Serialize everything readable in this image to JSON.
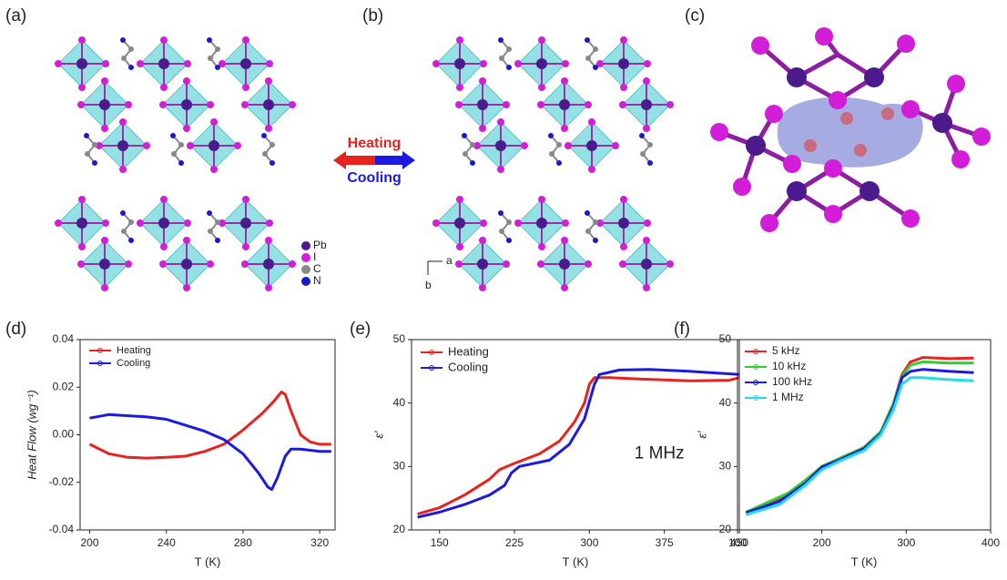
{
  "figure": {
    "panel_labels": [
      "(a)",
      "(b)",
      "(c)",
      "(d)",
      "(e)",
      "(f)"
    ],
    "transition": {
      "heating": "Heating",
      "cooling": "Cooling"
    },
    "atom_legend": [
      "Pb",
      "I",
      "C",
      "N"
    ],
    "axes": [
      "a",
      "b"
    ]
  },
  "chart_data": [
    {
      "type": "line",
      "x_label": "T (K)",
      "y_label": "Heat Flow (wg⁻¹)",
      "xlim": [
        195,
        328
      ],
      "xticks": [
        200,
        240,
        280,
        320
      ],
      "ylim": [
        -0.04,
        0.04
      ],
      "yticks": [
        -0.04,
        -0.02,
        {
          "value": 0,
          "label": "0.00"
        },
        0.02,
        0.04
      ],
      "legend": "top-left",
      "series": [
        {
          "name": "Heating",
          "color": "#e8231f",
          "x": [
            200,
            210,
            220,
            230,
            240,
            250,
            260,
            270,
            280,
            290,
            296,
            300,
            302,
            305,
            310,
            315,
            320,
            326
          ],
          "values": [
            -0.004,
            -0.008,
            -0.0095,
            -0.0098,
            -0.0095,
            -0.009,
            -0.007,
            -0.004,
            0.002,
            0.009,
            0.014,
            0.018,
            0.017,
            0.01,
            0.0,
            -0.003,
            -0.004,
            -0.004
          ]
        },
        {
          "name": "Cooling",
          "color": "#1a1ae0",
          "x": [
            200,
            210,
            220,
            230,
            240,
            250,
            260,
            270,
            280,
            288,
            293,
            295,
            298,
            302,
            305,
            310,
            320,
            326
          ],
          "values": [
            0.007,
            0.0085,
            0.008,
            0.0075,
            0.0065,
            0.004,
            0.0015,
            -0.002,
            -0.008,
            -0.016,
            -0.022,
            -0.023,
            -0.018,
            -0.009,
            -0.006,
            -0.006,
            -0.007,
            -0.007
          ]
        }
      ]
    },
    {
      "type": "line",
      "x_label": "T (K)",
      "y_label": "ε′",
      "annotation": "1 MHz",
      "xlim": [
        122,
        450
      ],
      "xticks": [
        150,
        225,
        300,
        375,
        450
      ],
      "ylim": [
        20,
        50
      ],
      "yticks": [
        20,
        30,
        40,
        50
      ],
      "legend": "top-left",
      "series": [
        {
          "name": "Heating",
          "color": "#e8231f",
          "x": [
            128,
            150,
            175,
            200,
            210,
            225,
            250,
            270,
            285,
            295,
            300,
            305,
            320,
            350,
            400,
            440,
            450
          ],
          "values": [
            22.5,
            23.5,
            25.5,
            28,
            29.5,
            30.5,
            32,
            34,
            37,
            40,
            43,
            44,
            44,
            43.8,
            43.5,
            43.6,
            44
          ]
        },
        {
          "name": "Cooling",
          "color": "#1a1ae0",
          "x": [
            128,
            150,
            175,
            200,
            215,
            222,
            230,
            260,
            280,
            295,
            305,
            310,
            330,
            360,
            400,
            450
          ],
          "values": [
            22,
            22.8,
            24,
            25.5,
            27,
            29,
            30,
            31,
            33.5,
            37.5,
            43,
            44.5,
            45.2,
            45.3,
            45,
            44.5
          ]
        }
      ]
    },
    {
      "type": "line",
      "x_label": "T (K)",
      "y_label": "ε′",
      "xlim": [
        100,
        400
      ],
      "xticks": [
        100,
        200,
        300,
        400
      ],
      "ylim": [
        20,
        50
      ],
      "yticks": [
        20,
        30,
        40,
        50
      ],
      "legend": "top-left",
      "series": [
        {
          "name": "5 kHz",
          "color": "#e8231f",
          "x": [
            110,
            150,
            180,
            200,
            220,
            250,
            270,
            285,
            295,
            305,
            320,
            350,
            380
          ],
          "values": [
            22.8,
            24.8,
            27.5,
            30,
            31.2,
            33,
            35.5,
            40,
            44.5,
            46.5,
            47.2,
            47,
            47.1
          ]
        },
        {
          "name": "10 kHz",
          "color": "#33cc33",
          "x": [
            110,
            160,
            180,
            200,
            220,
            250,
            270,
            285,
            295,
            305,
            320,
            350,
            380
          ],
          "values": [
            22.8,
            25.8,
            27.8,
            30,
            31.2,
            33,
            35.5,
            40,
            44.2,
            46,
            46.5,
            46.3,
            46.3
          ]
        },
        {
          "name": "100 kHz",
          "color": "#1a1ae0",
          "x": [
            110,
            150,
            180,
            200,
            220,
            250,
            270,
            285,
            295,
            305,
            320,
            350,
            380
          ],
          "values": [
            22.7,
            24.5,
            27.3,
            29.9,
            31,
            32.8,
            35.2,
            39.5,
            44,
            45,
            45.3,
            45,
            44.8
          ]
        },
        {
          "name": "1 MHz",
          "color": "#22dde8",
          "x": [
            110,
            150,
            180,
            200,
            220,
            250,
            270,
            285,
            295,
            305,
            320,
            350,
            380
          ],
          "values": [
            22.4,
            24,
            27,
            29.5,
            30.8,
            32.5,
            35,
            39,
            43,
            44,
            44,
            43.7,
            43.5
          ]
        }
      ]
    }
  ]
}
